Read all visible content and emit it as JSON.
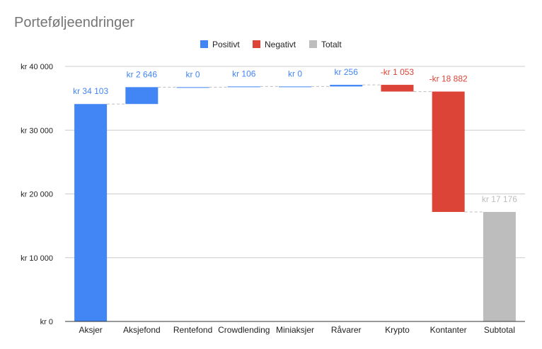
{
  "chart_data": {
    "type": "bar",
    "subtype": "waterfall",
    "title": "Porteføljeendringer",
    "legend": {
      "placement": "top-center",
      "items": [
        {
          "label": "Positivt",
          "color": "#4285f4"
        },
        {
          "label": "Negativt",
          "color": "#db4437"
        },
        {
          "label": "Totalt",
          "color": "#bdbdbd"
        }
      ]
    },
    "categories": [
      "Aksjer",
      "Aksjefond",
      "Rentefond",
      "Crowdlending",
      "Miniaksjer",
      "Råvarer",
      "Krypto",
      "Kontanter",
      "Subtotal"
    ],
    "values": [
      34103,
      2646,
      0,
      106,
      0,
      256,
      -1053,
      -18882,
      17176
    ],
    "kinds": [
      "positive",
      "positive",
      "positive",
      "positive",
      "positive",
      "positive",
      "negative",
      "negative",
      "total"
    ],
    "data_labels": [
      "kr  34 103",
      "kr  2 646",
      "kr  0",
      "kr  106",
      "kr  0",
      "kr  256",
      "-kr  1 053",
      "-kr  18 882",
      "kr  17 176"
    ],
    "y_ticks": [
      {
        "value": 0,
        "label": "kr   0"
      },
      {
        "value": 10000,
        "label": "kr  10 000"
      },
      {
        "value": 20000,
        "label": "kr  20 000"
      },
      {
        "value": 30000,
        "label": "kr  30 000"
      },
      {
        "value": 40000,
        "label": "kr  40 000"
      }
    ],
    "ylim": [
      0,
      40000
    ],
    "grid": true,
    "connectors": true
  }
}
